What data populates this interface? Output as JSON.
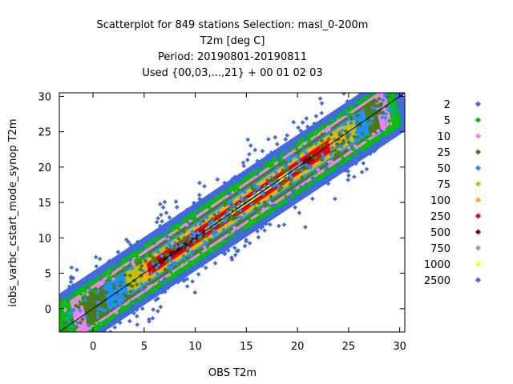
{
  "chart_data": {
    "type": "scatter",
    "title_lines": [
      "Scatterplot for  849 stations Selection: masl_0-200m",
      "T2m [deg C]",
      "Period: 20190801-20190811",
      "Used {00,03,...,21} + 00 01 02 03"
    ],
    "xlabel": "OBS T2m",
    "ylabel": "iobs_varbc_cstart_mode_synop T2m",
    "xlim": [
      -3.3,
      30.5
    ],
    "ylim": [
      -3.3,
      30.5
    ],
    "xticks": [
      0,
      5,
      10,
      15,
      20,
      25,
      30
    ],
    "yticks": [
      0,
      5,
      10,
      15,
      20,
      25,
      30
    ],
    "grid": false,
    "diagonal_line": true,
    "legend_position": "right",
    "legend": [
      {
        "label": "2",
        "color": "#4169e1"
      },
      {
        "label": "5",
        "color": "#00c000"
      },
      {
        "label": "10",
        "color": "#ee82ee"
      },
      {
        "label": "25",
        "color": "#4a7b0f"
      },
      {
        "label": "50",
        "color": "#1e90ff"
      },
      {
        "label": "75",
        "color": "#c8c000"
      },
      {
        "label": "100",
        "color": "#ffb000"
      },
      {
        "label": "250",
        "color": "#ee0000"
      },
      {
        "label": "500",
        "color": "#800000"
      },
      {
        "label": "750",
        "color": "#a0a0a0"
      },
      {
        "label": "1000",
        "color": "#ffff00"
      },
      {
        "label": "2500",
        "color": "#4169e1"
      }
    ],
    "density_bands": [
      {
        "label": "2",
        "halfwidth": 4.2,
        "from": -3.2,
        "to": 29.8
      },
      {
        "label": "5",
        "halfwidth": 3.3,
        "from": -2.8,
        "to": 29.2
      },
      {
        "label": "10",
        "halfwidth": 2.6,
        "from": -1.5,
        "to": 28.5
      },
      {
        "label": "25",
        "halfwidth": 2.2,
        "from": -0.5,
        "to": 27.5
      },
      {
        "label": "50",
        "halfwidth": 1.8,
        "from": 1.5,
        "to": 26.5
      },
      {
        "label": "75",
        "halfwidth": 1.5,
        "from": 3.5,
        "to": 25.5
      },
      {
        "label": "100",
        "halfwidth": 1.2,
        "from": 5.0,
        "to": 24.5
      },
      {
        "label": "250",
        "halfwidth": 0.9,
        "from": 5.5,
        "to": 23.0
      },
      {
        "label": "500",
        "halfwidth": 0.45,
        "from": 6.0,
        "to": 21.5
      },
      {
        "label": "750",
        "halfwidth": 0.35,
        "from": 11.0,
        "to": 20.5
      },
      {
        "label": "1000",
        "halfwidth": 0.3,
        "from": 13.5,
        "to": 19.0
      },
      {
        "label": "2500",
        "halfwidth": 0.12,
        "from": 14.0,
        "to": 18.0
      }
    ]
  }
}
